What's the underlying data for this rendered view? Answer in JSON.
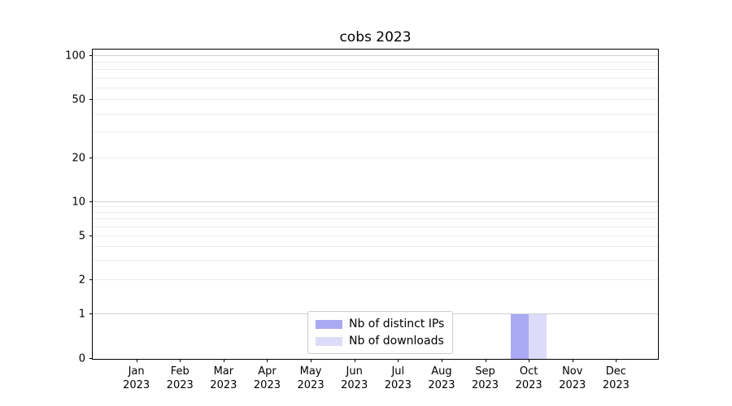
{
  "chart_data": {
    "type": "bar",
    "title": "cobs 2023",
    "year": "2023",
    "categories": [
      "Jan",
      "Feb",
      "Mar",
      "Apr",
      "May",
      "Jun",
      "Jul",
      "Aug",
      "Sep",
      "Oct",
      "Nov",
      "Dec"
    ],
    "series": [
      {
        "name": "Nb of distinct IPs",
        "color": "#a9a9f4",
        "values": [
          0,
          0,
          0,
          0,
          0,
          0,
          0,
          0,
          0,
          1,
          0,
          0
        ]
      },
      {
        "name": "Nb of downloads",
        "color": "#dcdcfa",
        "values": [
          0,
          0,
          0,
          0,
          0,
          0,
          0,
          0,
          0,
          1,
          0,
          0
        ]
      }
    ],
    "yscale": "symlog",
    "yticks": [
      0,
      1,
      2,
      5,
      10,
      20,
      50,
      100
    ],
    "ylim": [
      0,
      110
    ],
    "grid": "horizontal",
    "legend_position": "bottom-center",
    "colors": {
      "major_grid": "#d0d0d0",
      "minor_grid": "#ebebeb",
      "axis": "#000000",
      "background": "#ffffff"
    }
  }
}
